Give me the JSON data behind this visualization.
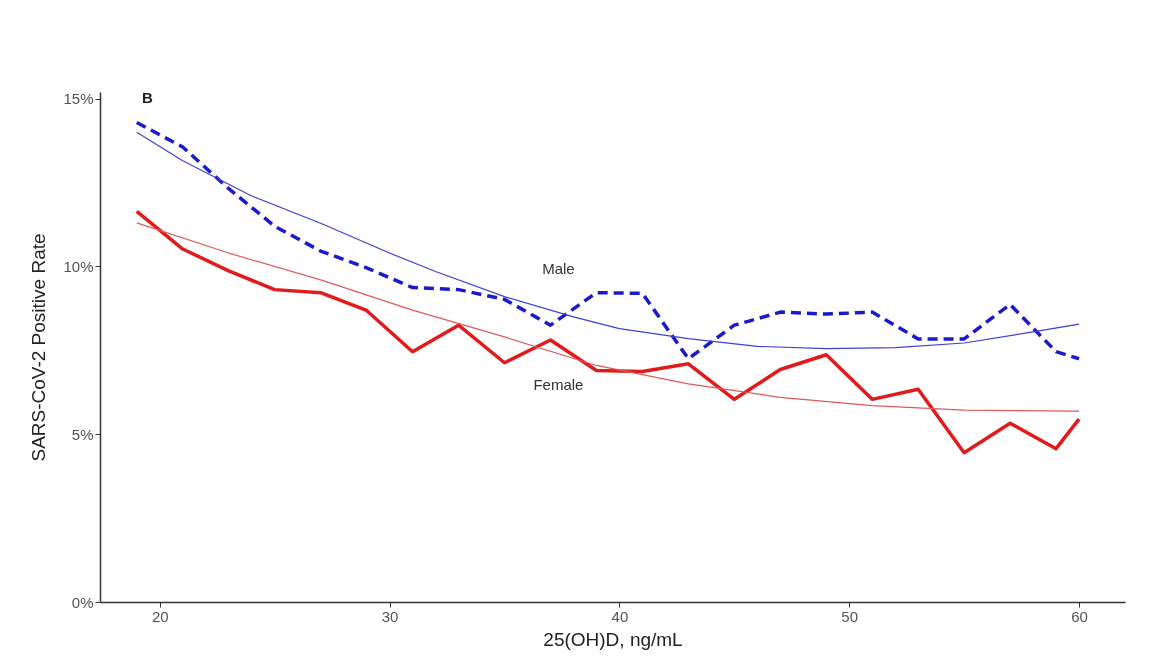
{
  "chart_data": {
    "type": "line",
    "xlabel": "25(OH)D, ng/mL",
    "ylabel": "SARS-CoV-2 Positive Rate",
    "annotations": [
      "B"
    ],
    "x": [
      19,
      21,
      23,
      25,
      27,
      29,
      31,
      33,
      35,
      37,
      39,
      41,
      43,
      45,
      47,
      49,
      51,
      53,
      55,
      57,
      59,
      60
    ],
    "xlim": [
      17.4,
      62
    ],
    "xticks": [
      20,
      30,
      40,
      50,
      60
    ],
    "ylim": [
      0,
      15.2
    ],
    "yticks": [
      {
        "value": 0,
        "label": "0%"
      },
      {
        "value": 5,
        "label": "5%"
      },
      {
        "value": 10,
        "label": "10%"
      },
      {
        "value": 15,
        "label": "15%"
      }
    ],
    "grid": false,
    "series": [
      {
        "name": "Male",
        "color": "#1a1acc",
        "line_style": "dashed",
        "values": [
          14.29,
          13.56,
          12.32,
          11.2,
          10.46,
          9.96,
          9.37,
          9.31,
          9.02,
          8.25,
          9.22,
          9.2,
          7.25,
          8.25,
          8.64,
          8.58,
          8.64,
          7.84,
          7.84,
          8.87,
          7.46,
          7.25
        ]
      },
      {
        "name": "Female",
        "color": "#e31a1c",
        "line_style": "solid",
        "values": [
          11.64,
          10.52,
          9.87,
          9.31,
          9.22,
          8.69,
          7.46,
          8.25,
          7.13,
          7.81,
          6.9,
          6.87,
          7.1,
          6.04,
          6.93,
          7.37,
          6.04,
          6.34,
          4.45,
          5.33,
          4.57,
          5.45
        ]
      },
      {
        "type": "line",
        "color": "#4040d8",
        "line_style": "solid",
        "x": [
          19,
          21,
          24,
          27,
          30,
          32,
          35,
          38,
          40,
          43,
          46,
          49,
          52,
          55,
          58,
          60
        ],
        "values": [
          14.0,
          13.15,
          12.1,
          11.29,
          10.4,
          9.85,
          9.1,
          8.5,
          8.15,
          7.85,
          7.62,
          7.55,
          7.58,
          7.72,
          8.05,
          8.28
        ]
      },
      {
        "type": "line",
        "color": "#e05a5a",
        "line_style": "solid",
        "x": [
          19,
          23,
          27,
          31,
          35,
          39,
          43,
          47,
          51,
          55,
          60
        ],
        "values": [
          11.3,
          10.4,
          9.6,
          8.7,
          7.9,
          7.05,
          6.5,
          6.1,
          5.85,
          5.72,
          5.69
        ]
      }
    ]
  }
}
